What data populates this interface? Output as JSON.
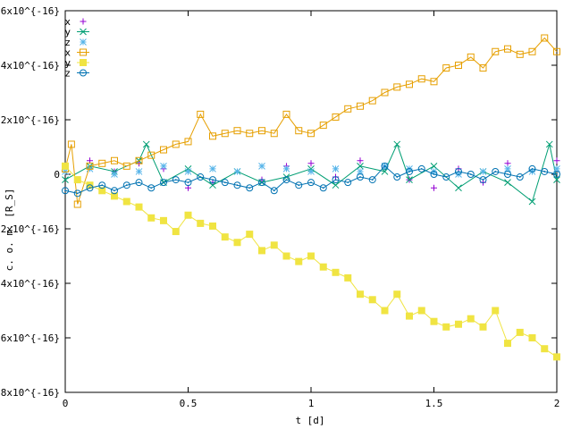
{
  "chart_data": {
    "type": "scatter",
    "xlabel": "t [d]",
    "ylabel": "c. o. m. [R_S]",
    "xlim": [
      0,
      2
    ],
    "ylim": [
      -8e-16,
      6e-16
    ],
    "x_ticks": [
      {
        "value": 0,
        "label": "0"
      },
      {
        "value": 0.5,
        "label": "0.5"
      },
      {
        "value": 1,
        "label": "1"
      },
      {
        "value": 1.5,
        "label": "1.5"
      },
      {
        "value": 2,
        "label": "2"
      }
    ],
    "y_ticks": [
      {
        "value": 6e-16,
        "label": "6x10^{-16}"
      },
      {
        "value": 4e-16,
        "label": "4x10^{-16}"
      },
      {
        "value": 2e-16,
        "label": "2x10^{-16}"
      },
      {
        "value": 0,
        "label": "0"
      },
      {
        "value": -2e-16,
        "label": "-2x10^{-16}"
      },
      {
        "value": -4e-16,
        "label": "-4x10^{-16}"
      },
      {
        "value": -6e-16,
        "label": "-6x10^{-16}"
      },
      {
        "value": -8e-16,
        "label": "-8x10^{-16}"
      }
    ],
    "legend_position": "top-left",
    "grid": false,
    "series": [
      {
        "name": "x",
        "color": "#9400d3",
        "marker": "plus",
        "line": false,
        "x": [
          0,
          0.1,
          0.2,
          0.3,
          0.4,
          0.5,
          0.6,
          0.7,
          0.8,
          0.9,
          1.0,
          1.1,
          1.2,
          1.3,
          1.4,
          1.5,
          1.6,
          1.7,
          1.8,
          1.9,
          2.0
        ],
        "y": [
          3e-17,
          5e-17,
          1e-17,
          4e-17,
          2e-17,
          -5e-17,
          -3e-17,
          1e-17,
          -2e-17,
          3e-17,
          4e-17,
          -1e-17,
          5e-17,
          3e-17,
          -2e-17,
          -5e-17,
          2e-17,
          -3e-17,
          4e-17,
          1e-17,
          5e-17
        ]
      },
      {
        "name": "y",
        "color": "#009e73",
        "marker": "cross",
        "line": true,
        "x": [
          0,
          0.1,
          0.2,
          0.3,
          0.33,
          0.4,
          0.5,
          0.6,
          0.7,
          0.8,
          0.9,
          1.0,
          1.1,
          1.2,
          1.3,
          1.35,
          1.4,
          1.5,
          1.6,
          1.7,
          1.8,
          1.9,
          1.97,
          2.0
        ],
        "y": [
          -2e-17,
          3e-17,
          1e-17,
          5e-17,
          1.1e-16,
          -3e-17,
          2e-17,
          -4e-17,
          1e-17,
          -3e-17,
          -1e-17,
          2e-17,
          -4e-17,
          3e-17,
          1e-17,
          1.1e-16,
          -2e-17,
          3e-17,
          -5e-17,
          1e-17,
          -3e-17,
          -1e-16,
          1.1e-16,
          -2e-17
        ]
      },
      {
        "name": "z",
        "color": "#56b4e9",
        "marker": "star",
        "line": false,
        "x": [
          0,
          0.1,
          0.2,
          0.3,
          0.4,
          0.5,
          0.6,
          0.7,
          0.8,
          0.9,
          1.0,
          1.1,
          1.2,
          1.3,
          1.4,
          1.5,
          1.6,
          1.7,
          1.8,
          1.9,
          2.0
        ],
        "y": [
          1e-17,
          2e-17,
          0.0,
          1e-17,
          3e-17,
          1e-17,
          2e-17,
          1e-17,
          3e-17,
          2e-17,
          1e-17,
          2e-17,
          1e-17,
          3e-17,
          2e-17,
          1e-17,
          0.0,
          1e-17,
          2e-17,
          1e-17,
          2e-17
        ]
      },
      {
        "name": "x",
        "color": "#e69f00",
        "marker": "square-open",
        "line": true,
        "x": [
          0,
          0.025,
          0.05,
          0.1,
          0.15,
          0.2,
          0.25,
          0.3,
          0.35,
          0.4,
          0.45,
          0.5,
          0.55,
          0.6,
          0.65,
          0.7,
          0.75,
          0.8,
          0.85,
          0.9,
          0.95,
          1.0,
          1.05,
          1.1,
          1.15,
          1.2,
          1.25,
          1.3,
          1.35,
          1.4,
          1.45,
          1.5,
          1.55,
          1.6,
          1.65,
          1.7,
          1.75,
          1.8,
          1.85,
          1.9,
          1.95,
          2.0
        ],
        "y": [
          2e-17,
          1.1e-16,
          -1.1e-16,
          3e-17,
          4e-17,
          5e-17,
          3e-17,
          5e-17,
          7e-17,
          9e-17,
          1.1e-16,
          1.2e-16,
          2.2e-16,
          1.4e-16,
          1.5e-16,
          1.6e-16,
          1.5e-16,
          1.6e-16,
          1.5e-16,
          2.2e-16,
          1.6e-16,
          1.5e-16,
          1.8e-16,
          2.1e-16,
          2.4e-16,
          2.5e-16,
          2.7e-16,
          3e-16,
          3.2e-16,
          3.3e-16,
          3.5e-16,
          3.4e-16,
          3.9e-16,
          4e-16,
          4.3e-16,
          3.9e-16,
          4.5e-16,
          4.6e-16,
          4.4e-16,
          4.5e-16,
          5e-16,
          4.5e-16
        ]
      },
      {
        "name": "y",
        "color": "#f0e442",
        "marker": "square-filled",
        "line": true,
        "x": [
          0,
          0.05,
          0.1,
          0.15,
          0.2,
          0.25,
          0.3,
          0.35,
          0.4,
          0.45,
          0.5,
          0.55,
          0.6,
          0.65,
          0.7,
          0.75,
          0.8,
          0.85,
          0.9,
          0.95,
          1.0,
          1.05,
          1.1,
          1.15,
          1.2,
          1.25,
          1.3,
          1.35,
          1.4,
          1.45,
          1.5,
          1.55,
          1.6,
          1.65,
          1.7,
          1.75,
          1.8,
          1.85,
          1.9,
          1.95,
          2.0
        ],
        "y": [
          3e-17,
          -2e-17,
          -4e-17,
          -6e-17,
          -8e-17,
          -1e-16,
          -1.2e-16,
          -1.6e-16,
          -1.7e-16,
          -2.1e-16,
          -1.5e-16,
          -1.8e-16,
          -1.9e-16,
          -2.3e-16,
          -2.5e-16,
          -2.2e-16,
          -2.8e-16,
          -2.6e-16,
          -3e-16,
          -3.2e-16,
          -3e-16,
          -3.4e-16,
          -3.6e-16,
          -3.8e-16,
          -4.4e-16,
          -4.6e-16,
          -5e-16,
          -4.4e-16,
          -5.2e-16,
          -5e-16,
          -5.4e-16,
          -5.6e-16,
          -5.5e-16,
          -5.3e-16,
          -5.6e-16,
          -5e-16,
          -6.2e-16,
          -5.8e-16,
          -6e-16,
          -6.4e-16,
          -6.7e-16
        ]
      },
      {
        "name": "z",
        "color": "#0072b2",
        "marker": "circle-dot",
        "line": true,
        "x": [
          0,
          0.05,
          0.1,
          0.15,
          0.2,
          0.25,
          0.3,
          0.35,
          0.4,
          0.45,
          0.5,
          0.55,
          0.6,
          0.65,
          0.7,
          0.75,
          0.8,
          0.85,
          0.9,
          0.95,
          1.0,
          1.05,
          1.1,
          1.15,
          1.2,
          1.25,
          1.3,
          1.35,
          1.4,
          1.45,
          1.5,
          1.55,
          1.6,
          1.65,
          1.7,
          1.75,
          1.8,
          1.85,
          1.9,
          1.95,
          2.0
        ],
        "y": [
          -6e-17,
          -7e-17,
          -5e-17,
          -4e-17,
          -6e-17,
          -4e-17,
          -3e-17,
          -5e-17,
          -3e-17,
          -2e-17,
          -3e-17,
          -1e-17,
          -2e-17,
          -3e-17,
          -4e-17,
          -5e-17,
          -3e-17,
          -6e-17,
          -2e-17,
          -4e-17,
          -3e-17,
          -5e-17,
          -2e-17,
          -3e-17,
          -1e-17,
          -2e-17,
          3e-17,
          -1e-17,
          1e-17,
          2e-17,
          0.0,
          -1e-17,
          1e-17,
          0.0,
          -2e-17,
          1e-17,
          0.0,
          -1e-17,
          2e-17,
          1e-17,
          0.0
        ]
      }
    ]
  }
}
